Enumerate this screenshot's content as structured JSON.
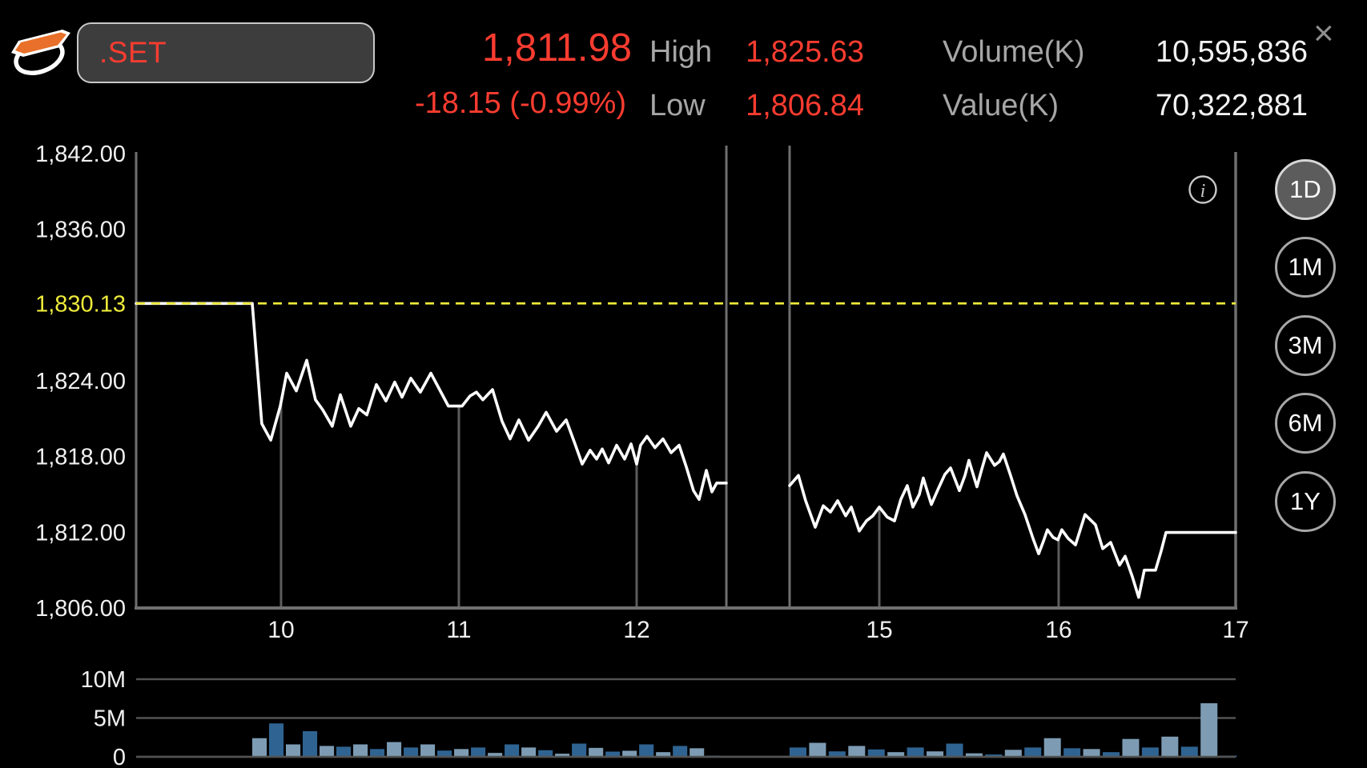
{
  "header": {
    "symbol": ".SET",
    "last_price": "1,811.98",
    "change": "-18.15 (-0.99%)",
    "high_label": "High",
    "high_value": "1,825.63",
    "low_label": "Low",
    "low_value": "1,806.84",
    "volume_label": "Volume(K)",
    "volume_value": "10,595,836",
    "value_label": "Value(K)",
    "value_value": "70,322,881",
    "close_icon": "×"
  },
  "range_buttons": [
    {
      "label": "1D",
      "selected": true
    },
    {
      "label": "1M",
      "selected": false
    },
    {
      "label": "3M",
      "selected": false
    },
    {
      "label": "6M",
      "selected": false
    },
    {
      "label": "1Y",
      "selected": false
    }
  ],
  "info_icon": "i",
  "colors": {
    "background": "#000000",
    "negative_red": "#fa3c30",
    "label_gray": "#a6a6a6",
    "value_white": "#f2f2f2",
    "prev_close_yellow": "#edea3a",
    "line_white": "#ffffff",
    "axis_gray": "#6f6f6f",
    "dropline_gray": "#5c5c5c",
    "volume_grid_gray": "#525252",
    "bar_light": "#7d9cb4",
    "bar_dark": "#2f6492",
    "tick_text": "#f0f0f0"
  },
  "chart_data": {
    "type": "line",
    "title": ".SET intraday (1D)",
    "price_axis": {
      "min": 1806,
      "max": 1842,
      "ticks": [
        {
          "value": 1842,
          "label": "1,842.00"
        },
        {
          "value": 1836,
          "label": "1,836.00"
        },
        {
          "value": 1824,
          "label": "1,824.00"
        },
        {
          "value": 1818,
          "label": "1,818.00"
        },
        {
          "value": 1812,
          "label": "1,812.00"
        },
        {
          "value": 1806,
          "label": "1,806.00"
        }
      ]
    },
    "prev_close": {
      "value": 1830.13,
      "label": "1,830.13"
    },
    "time_axis": {
      "labels": [
        {
          "label": "10",
          "f": 0.1318
        },
        {
          "label": "11",
          "f": 0.2935
        },
        {
          "label": "12",
          "f": 0.4552
        },
        {
          "label": "15",
          "f": 0.6759
        },
        {
          "label": "16",
          "f": 0.839
        },
        {
          "label": "17",
          "f": 1.0
        }
      ],
      "dropline_f": [
        0.1318,
        0.2935,
        0.4552,
        0.6759,
        0.839
      ],
      "session_break_f": [
        0.5368,
        0.5943
      ]
    },
    "series": {
      "morning": [
        [
          0.0,
          1830.13
        ],
        [
          0.1056,
          1830.13
        ],
        [
          0.1143,
          1820.6
        ],
        [
          0.1224,
          1819.3
        ],
        [
          0.1311,
          1822.0
        ],
        [
          0.1369,
          1824.6
        ],
        [
          0.1457,
          1823.2
        ],
        [
          0.1551,
          1825.63
        ],
        [
          0.1631,
          1822.5
        ],
        [
          0.1697,
          1821.7
        ],
        [
          0.1784,
          1820.4
        ],
        [
          0.1857,
          1822.9
        ],
        [
          0.1952,
          1820.4
        ],
        [
          0.2025,
          1821.8
        ],
        [
          0.2098,
          1821.3
        ],
        [
          0.2185,
          1823.7
        ],
        [
          0.2272,
          1822.4
        ],
        [
          0.2352,
          1823.9
        ],
        [
          0.2418,
          1822.7
        ],
        [
          0.2498,
          1824.2
        ],
        [
          0.2585,
          1823.1
        ],
        [
          0.268,
          1824.6
        ],
        [
          0.284,
          1822.0
        ],
        [
          0.2964,
          1822.0
        ],
        [
          0.3037,
          1822.8
        ],
        [
          0.3095,
          1823.1
        ],
        [
          0.3153,
          1822.5
        ],
        [
          0.3241,
          1823.3
        ],
        [
          0.3328,
          1820.8
        ],
        [
          0.3401,
          1819.4
        ],
        [
          0.3481,
          1820.9
        ],
        [
          0.3569,
          1819.3
        ],
        [
          0.3656,
          1820.4
        ],
        [
          0.3729,
          1821.5
        ],
        [
          0.3824,
          1820.0
        ],
        [
          0.3911,
          1820.9
        ],
        [
          0.3991,
          1819.0
        ],
        [
          0.4057,
          1817.4
        ],
        [
          0.4129,
          1818.5
        ],
        [
          0.4188,
          1817.8
        ],
        [
          0.4239,
          1818.6
        ],
        [
          0.4297,
          1817.5
        ],
        [
          0.437,
          1818.9
        ],
        [
          0.4443,
          1817.8
        ],
        [
          0.4501,
          1819.0
        ],
        [
          0.4552,
          1817.4
        ],
        [
          0.4588,
          1818.9
        ],
        [
          0.4646,
          1819.6
        ],
        [
          0.4719,
          1818.7
        ],
        [
          0.4792,
          1819.4
        ],
        [
          0.4865,
          1818.3
        ],
        [
          0.4938,
          1818.9
        ],
        [
          0.5003,
          1817.2
        ],
        [
          0.5069,
          1815.3
        ],
        [
          0.512,
          1814.6
        ],
        [
          0.5186,
          1816.9
        ],
        [
          0.5237,
          1815.2
        ],
        [
          0.528,
          1815.9
        ],
        [
          0.5368,
          1815.9
        ]
      ],
      "afternoon": [
        [
          0.5943,
          1815.7
        ],
        [
          0.6023,
          1816.5
        ],
        [
          0.6089,
          1814.5
        ],
        [
          0.6176,
          1812.4
        ],
        [
          0.6249,
          1814.1
        ],
        [
          0.6315,
          1813.6
        ],
        [
          0.638,
          1814.5
        ],
        [
          0.6453,
          1813.3
        ],
        [
          0.6504,
          1814.0
        ],
        [
          0.6577,
          1812.1
        ],
        [
          0.6642,
          1812.9
        ],
        [
          0.67,
          1813.3
        ],
        [
          0.6759,
          1814.0
        ],
        [
          0.6831,
          1813.2
        ],
        [
          0.6897,
          1812.9
        ],
        [
          0.6955,
          1814.6
        ],
        [
          0.7013,
          1815.7
        ],
        [
          0.7064,
          1814.0
        ],
        [
          0.7123,
          1815.0
        ],
        [
          0.7159,
          1816.3
        ],
        [
          0.7232,
          1814.2
        ],
        [
          0.7298,
          1815.5
        ],
        [
          0.7356,
          1816.6
        ],
        [
          0.7407,
          1817.1
        ],
        [
          0.7487,
          1815.3
        ],
        [
          0.7538,
          1816.5
        ],
        [
          0.7574,
          1817.7
        ],
        [
          0.7647,
          1815.6
        ],
        [
          0.7691,
          1817.0
        ],
        [
          0.7735,
          1818.3
        ],
        [
          0.7807,
          1817.3
        ],
        [
          0.7851,
          1817.6
        ],
        [
          0.7887,
          1818.2
        ],
        [
          0.7953,
          1816.5
        ],
        [
          0.8011,
          1814.9
        ],
        [
          0.8084,
          1813.4
        ],
        [
          0.8157,
          1811.5
        ],
        [
          0.8208,
          1810.3
        ],
        [
          0.8252,
          1811.3
        ],
        [
          0.8288,
          1812.2
        ],
        [
          0.8339,
          1811.6
        ],
        [
          0.8383,
          1811.4
        ],
        [
          0.8419,
          1812.2
        ],
        [
          0.8477,
          1811.5
        ],
        [
          0.8543,
          1811.0
        ],
        [
          0.863,
          1813.4
        ],
        [
          0.8725,
          1812.6
        ],
        [
          0.8791,
          1810.7
        ],
        [
          0.8863,
          1811.2
        ],
        [
          0.8944,
          1809.4
        ],
        [
          0.8995,
          1810.1
        ],
        [
          0.906,
          1808.5
        ],
        [
          0.9118,
          1806.84
        ],
        [
          0.9169,
          1809.0
        ],
        [
          0.9271,
          1809.0
        ],
        [
          0.9322,
          1810.5
        ],
        [
          0.9366,
          1811.98
        ],
        [
          1.0,
          1811.98
        ]
      ]
    },
    "volume": {
      "type": "bar",
      "unit": "millions",
      "axis_ticks": [
        {
          "value": 10,
          "label": "10M"
        },
        {
          "value": 5,
          "label": "5M"
        },
        {
          "value": 0,
          "label": "0"
        }
      ],
      "groups": [
        {
          "start_f": 0.1056,
          "pitch_f": 0.0153,
          "first_color": "light",
          "values": [
            2.4,
            4.3,
            1.6,
            3.3,
            1.4,
            1.3,
            1.6,
            1.0,
            1.9,
            1.2,
            1.6,
            0.8,
            1.0,
            1.2,
            0.5,
            1.6,
            1.2,
            0.85,
            0.4,
            1.7,
            1.15,
            0.67,
            0.78,
            1.6,
            0.6,
            1.4,
            1.1,
            0.15
          ]
        },
        {
          "start_f": 0.5943,
          "pitch_f": 0.0178,
          "first_color": "dark",
          "values": [
            1.2,
            1.8,
            0.7,
            1.4,
            0.95,
            0.6,
            1.2,
            0.7,
            1.7,
            0.45,
            0.3,
            0.9,
            1.2,
            2.4,
            1.1,
            1.0,
            0.6,
            2.3,
            1.2,
            2.6,
            1.3,
            6.9,
            0.15
          ]
        }
      ]
    }
  }
}
